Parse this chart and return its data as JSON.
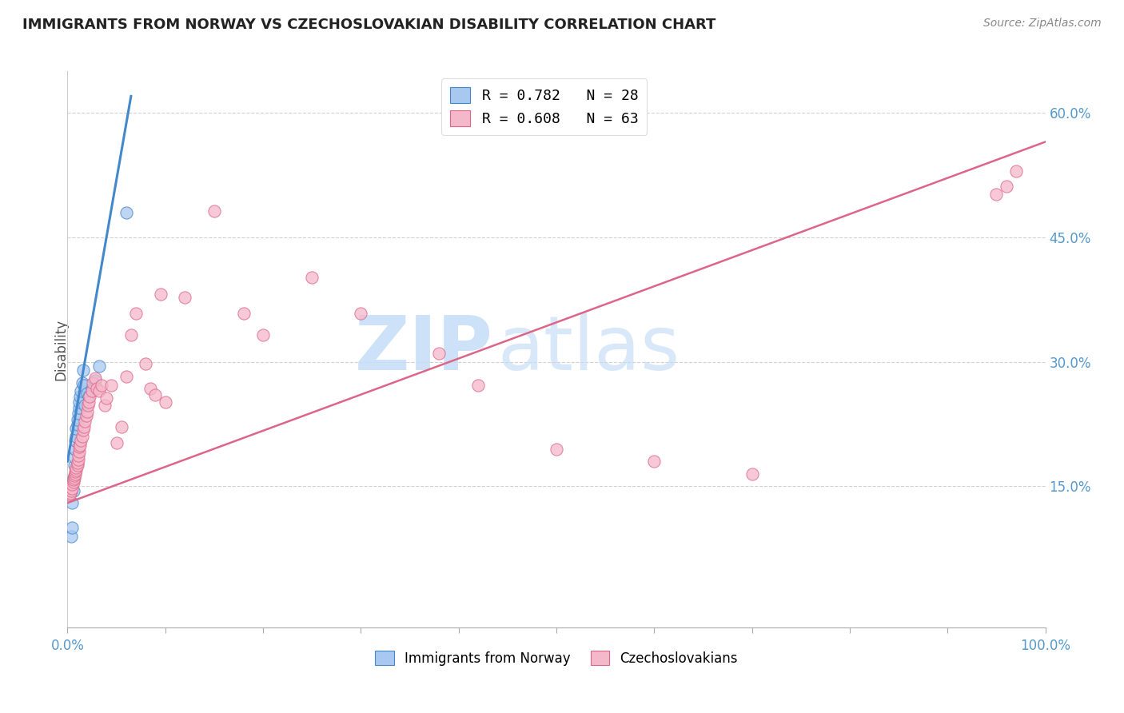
{
  "title": "IMMIGRANTS FROM NORWAY VS CZECHOSLOVAKIAN DISABILITY CORRELATION CHART",
  "source": "Source: ZipAtlas.com",
  "ylabel": "Disability",
  "ytick_labels": [
    "15.0%",
    "30.0%",
    "45.0%",
    "60.0%"
  ],
  "ytick_values": [
    0.15,
    0.3,
    0.45,
    0.6
  ],
  "xtick_labels": [
    "0.0%",
    "100.0%"
  ],
  "xlim": [
    0.0,
    1.0
  ],
  "ylim": [
    -0.02,
    0.65
  ],
  "legend_entry1": "R = 0.782   N = 28",
  "legend_entry2": "R = 0.608   N = 63",
  "legend_label1": "Immigrants from Norway",
  "legend_label2": "Czechoslovakians",
  "color_norway": "#a8c8f0",
  "color_czech": "#f5b8cb",
  "color_norway_line": "#4488cc",
  "color_czech_line": "#dd6688",
  "norway_x": [
    0.004,
    0.005,
    0.005,
    0.006,
    0.006,
    0.007,
    0.007,
    0.008,
    0.008,
    0.009,
    0.009,
    0.01,
    0.01,
    0.011,
    0.012,
    0.012,
    0.013,
    0.014,
    0.015,
    0.016,
    0.017,
    0.018,
    0.02,
    0.022,
    0.025,
    0.028,
    0.032,
    0.06
  ],
  "norway_y": [
    0.09,
    0.1,
    0.13,
    0.145,
    0.16,
    0.175,
    0.185,
    0.195,
    0.205,
    0.21,
    0.22,
    0.225,
    0.23,
    0.238,
    0.245,
    0.252,
    0.258,
    0.265,
    0.275,
    0.29,
    0.272,
    0.248,
    0.262,
    0.258,
    0.268,
    0.278,
    0.295,
    0.48
  ],
  "czech_x": [
    0.002,
    0.003,
    0.004,
    0.005,
    0.005,
    0.006,
    0.006,
    0.007,
    0.007,
    0.008,
    0.008,
    0.009,
    0.009,
    0.01,
    0.01,
    0.011,
    0.011,
    0.012,
    0.012,
    0.013,
    0.014,
    0.015,
    0.016,
    0.017,
    0.018,
    0.019,
    0.02,
    0.021,
    0.022,
    0.023,
    0.025,
    0.026,
    0.028,
    0.03,
    0.032,
    0.035,
    0.038,
    0.04,
    0.045,
    0.05,
    0.055,
    0.06,
    0.065,
    0.07,
    0.08,
    0.085,
    0.09,
    0.095,
    0.1,
    0.12,
    0.15,
    0.18,
    0.2,
    0.25,
    0.3,
    0.38,
    0.42,
    0.5,
    0.6,
    0.7,
    0.95,
    0.96,
    0.97
  ],
  "czech_y": [
    0.14,
    0.142,
    0.145,
    0.148,
    0.152,
    0.155,
    0.158,
    0.16,
    0.163,
    0.165,
    0.168,
    0.17,
    0.173,
    0.175,
    0.178,
    0.182,
    0.187,
    0.192,
    0.198,
    0.2,
    0.205,
    0.21,
    0.218,
    0.222,
    0.228,
    0.235,
    0.24,
    0.248,
    0.252,
    0.258,
    0.265,
    0.275,
    0.28,
    0.268,
    0.265,
    0.272,
    0.248,
    0.256,
    0.272,
    0.202,
    0.222,
    0.282,
    0.332,
    0.358,
    0.298,
    0.268,
    0.26,
    0.382,
    0.252,
    0.378,
    0.482,
    0.358,
    0.332,
    0.402,
    0.358,
    0.31,
    0.272,
    0.195,
    0.18,
    0.165,
    0.502,
    0.512,
    0.53
  ],
  "norway_line_x": [
    0.0,
    0.065
  ],
  "norway_line_y": [
    0.18,
    0.62
  ],
  "czech_line_x": [
    0.0,
    1.0
  ],
  "czech_line_y": [
    0.13,
    0.565
  ],
  "watermark_zip": "ZIP",
  "watermark_atlas": "atlas",
  "background_color": "#ffffff",
  "grid_color": "#cccccc",
  "title_color": "#222222",
  "source_color": "#888888",
  "axis_color": "#5599cc"
}
